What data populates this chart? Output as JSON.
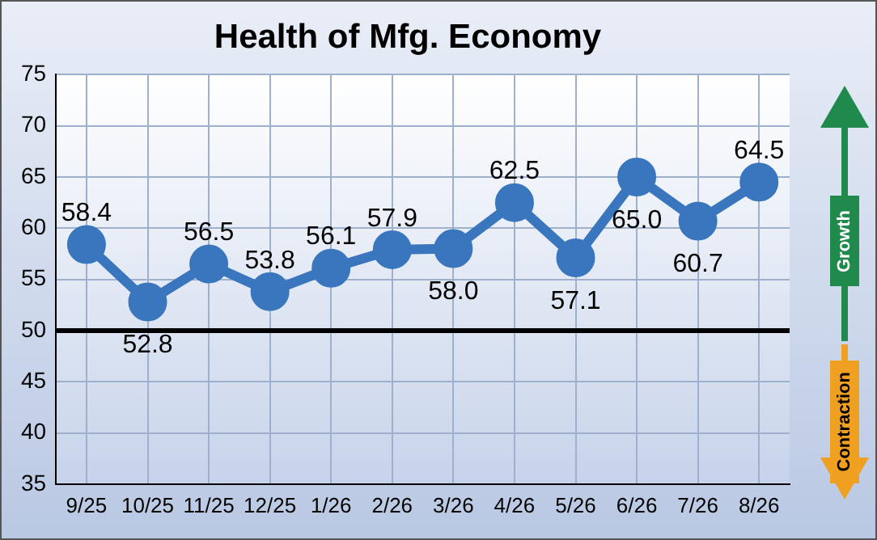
{
  "chart_data": {
    "type": "line",
    "title": "Health of Mfg. Economy",
    "categories": [
      "9/25",
      "10/25",
      "11/25",
      "12/25",
      "1/26",
      "2/26",
      "3/26",
      "4/26",
      "5/26",
      "6/26",
      "7/26",
      "8/26"
    ],
    "series": [
      {
        "color": "#3a76be",
        "values": [
          58.4,
          52.8,
          56.5,
          53.8,
          56.1,
          57.9,
          58.0,
          62.5,
          57.1,
          65.0,
          60.7,
          64.5
        ],
        "value_labels": [
          "58.4",
          "52.8",
          "56.5",
          "53.8",
          "56.1",
          "57.9",
          "58.0",
          "62.5",
          "57.1",
          "65.0",
          "60.7",
          "64.5"
        ]
      }
    ],
    "ylim": [
      35,
      75
    ],
    "yticks": [
      35,
      40,
      45,
      50,
      55,
      60,
      65,
      70,
      75
    ],
    "grid": true,
    "legend": false,
    "marker": "circle",
    "line_style": "solid",
    "ref_lines": [
      {
        "axis": "y",
        "value": 50,
        "color": "#000000"
      }
    ],
    "annotations": [
      "Growth",
      "Contraction"
    ]
  }
}
